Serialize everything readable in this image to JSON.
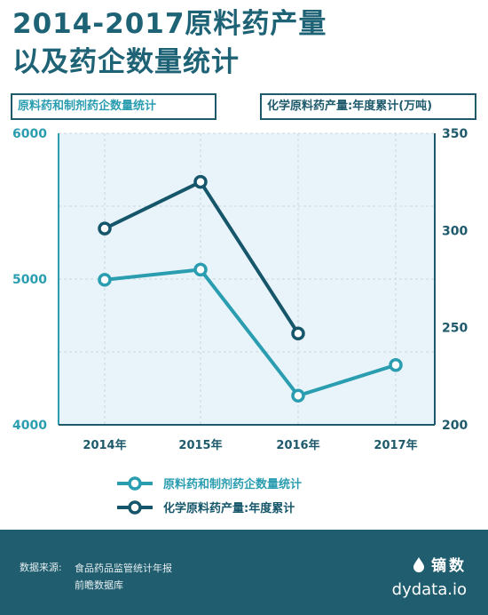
{
  "title_line1": "2014-2017原料药产量",
  "title_line2": "以及药企数量统计",
  "left_axis_title": "原料药和制剂药企数量统计",
  "right_axis_title": "化学原料药产量:年度累计(万吨)",
  "chart_data": {
    "type": "line",
    "categories": [
      "2014年",
      "2015年",
      "2016年",
      "2017年"
    ],
    "left_axis": {
      "ylim": [
        4000,
        6000
      ],
      "ticks": [
        "6000",
        "5000",
        "4000"
      ]
    },
    "right_axis": {
      "ylim": [
        200,
        350
      ],
      "ticks": [
        "350",
        "300",
        "250",
        "200"
      ]
    },
    "series": [
      {
        "name": "原料药和制剂药企数量统计",
        "axis": "left",
        "color": "#2a9db0",
        "values": [
          4995,
          5065,
          4200,
          4410
        ]
      },
      {
        "name": "化学原料药产量:年度累计",
        "axis": "right",
        "color": "#16566a",
        "values": [
          301,
          325,
          247,
          null
        ]
      }
    ],
    "grid": true,
    "legend_placement": "bottom"
  },
  "footer": {
    "source_label": "数据来源:",
    "source_lines": [
      "食品药品监管统计年报",
      "前瞻数据库"
    ],
    "brand_name": "镝数",
    "brand_url": "dydata.io"
  },
  "colors": {
    "footer_bg": "#1f5d6f",
    "plot_bg": "#e8f4f9",
    "title": "#1e6275"
  }
}
